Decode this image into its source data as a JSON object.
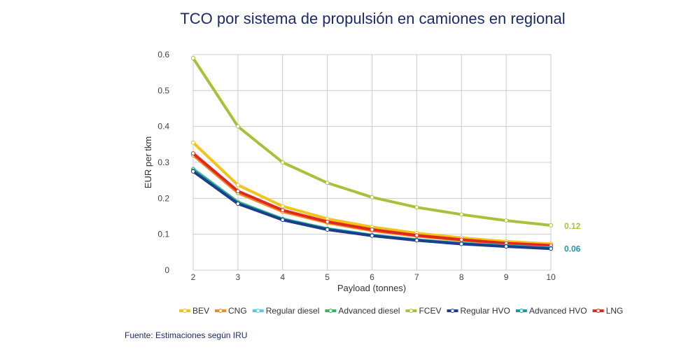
{
  "title": "TCO por sistema de propulsión en camiones en regional",
  "source": "Fuente: Estimaciones según IRU",
  "chart_data": {
    "type": "line",
    "title": "TCO por sistema de propulsión en camiones en regional",
    "xlabel": "Payload (tonnes)",
    "ylabel": "EUR per tkm",
    "x": [
      2,
      3,
      4,
      5,
      6,
      7,
      8,
      9,
      10
    ],
    "xlim": [
      2,
      10
    ],
    "ylim": [
      0,
      0.6
    ],
    "yticks": [
      "0",
      "0.1",
      "0.2",
      "0.3",
      "0.4",
      "0.5",
      "0.6"
    ],
    "xticks": [
      "2",
      "3",
      "4",
      "5",
      "6",
      "7",
      "8",
      "9",
      "10"
    ],
    "grid": true,
    "legend_position": "bottom",
    "series": [
      {
        "name": "BEV",
        "color": "#f2c318",
        "values": [
          0.355,
          0.237,
          0.178,
          0.143,
          0.12,
          0.103,
          0.09,
          0.08,
          0.073
        ]
      },
      {
        "name": "CNG",
        "color": "#f08a24",
        "values": [
          0.32,
          0.215,
          0.163,
          0.132,
          0.11,
          0.095,
          0.083,
          0.074,
          0.067
        ]
      },
      {
        "name": "Regular diesel",
        "color": "#5cc8e6",
        "values": [
          0.282,
          0.19,
          0.143,
          0.116,
          0.098,
          0.085,
          0.075,
          0.068,
          0.062
        ]
      },
      {
        "name": "Advanced diesel",
        "color": "#3fae5a",
        "values": [
          0.28,
          0.189,
          0.142,
          0.115,
          0.097,
          0.084,
          0.074,
          0.067,
          0.061
        ]
      },
      {
        "name": "FCEV",
        "color": "#a5c23a",
        "values": [
          0.59,
          0.4,
          0.3,
          0.243,
          0.203,
          0.175,
          0.155,
          0.138,
          0.125
        ]
      },
      {
        "name": "Regular HVO",
        "color": "#1a3f8a",
        "values": [
          0.275,
          0.185,
          0.14,
          0.113,
          0.096,
          0.083,
          0.073,
          0.066,
          0.06
        ]
      },
      {
        "name": "Advanced HVO",
        "color": "#1a9aa8",
        "values": [
          0.277,
          0.187,
          0.141,
          0.114,
          0.097,
          0.084,
          0.074,
          0.067,
          0.061
        ]
      },
      {
        "name": "LNG",
        "color": "#e0281e",
        "values": [
          0.325,
          0.22,
          0.167,
          0.135,
          0.113,
          0.097,
          0.085,
          0.075,
          0.069
        ]
      }
    ],
    "annotations": [
      {
        "text": "0.12",
        "color": "#a5c23a",
        "series": "FCEV"
      },
      {
        "text": "0.06",
        "color": "#1a9aa8",
        "series": "Advanced HVO"
      }
    ]
  }
}
